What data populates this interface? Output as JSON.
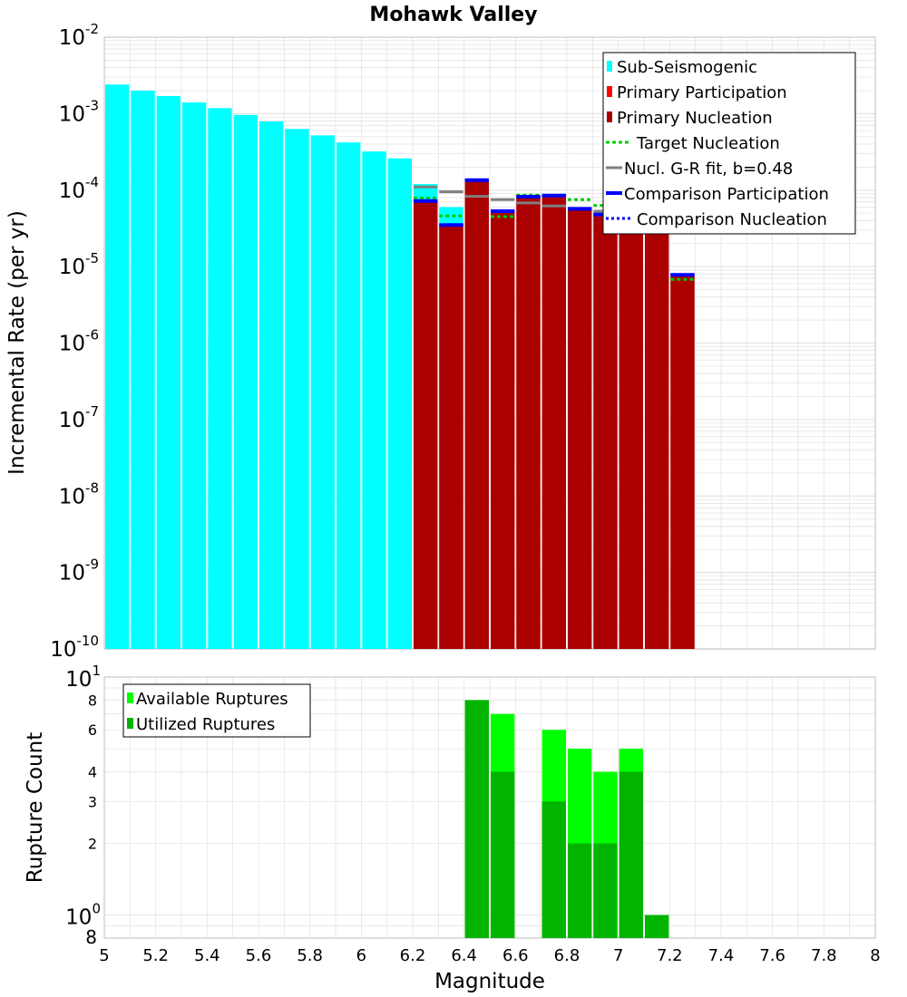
{
  "colors": {
    "sub": "#00ffff",
    "primary_participation": "#ff0000",
    "primary_nucleation": "#aa0000",
    "target": "#00cc00",
    "gr_fit": "#808080",
    "comparison": "#0000ff",
    "available": "#00ff00",
    "utilized": "#00b400",
    "grid": "#e4e4e4"
  },
  "chart_data": [
    {
      "type": "bar",
      "title": "Mohawk Valley",
      "xlabel": "Magnitude",
      "ylabel": "Incremental Rate (per yr)",
      "xlim": [
        5,
        8
      ],
      "ylim_log10": [
        -10,
        -2
      ],
      "y_tick_exponents": [
        "-10",
        "-9",
        "-8",
        "-7",
        "-6",
        "-5",
        "-4",
        "-3",
        "-2"
      ],
      "sub_seismogenic": {
        "x": [
          5.05,
          5.15,
          5.25,
          5.35,
          5.45,
          5.55,
          5.65,
          5.75,
          5.85,
          5.95,
          6.05,
          6.15,
          6.25,
          6.35
        ],
        "y": [
          0.0024,
          0.002,
          0.0017,
          0.0014,
          0.00118,
          0.00096,
          0.00079,
          0.00063,
          0.00052,
          0.00042,
          0.00032,
          0.00026,
          0.00012,
          6e-05
        ]
      },
      "primary_participation": {
        "x": [
          6.25,
          6.35,
          6.45,
          6.55,
          6.65,
          6.75,
          6.85,
          6.95,
          7.05,
          7.15,
          7.25
        ],
        "y": [
          7.2e-05,
          3.5e-05,
          0.000135,
          5e-05,
          8.2e-05,
          8.5e-05,
          5.7e-05,
          4.8e-05,
          4.8e-05,
          4.3e-05,
          7.5e-06
        ]
      },
      "primary_nucleation": {
        "x": [
          6.25,
          6.35,
          6.45,
          6.55,
          6.65,
          6.75,
          6.85,
          6.95,
          7.05,
          7.15,
          7.25
        ],
        "y": [
          7.2e-05,
          3.5e-05,
          0.000135,
          5e-05,
          8.2e-05,
          8.5e-05,
          5.7e-05,
          4.8e-05,
          4.8e-05,
          4.3e-05,
          7.5e-06
        ]
      },
      "target_nucleation": {
        "x": [
          6.25,
          6.35,
          6.45,
          6.55,
          6.65,
          6.75,
          6.85,
          6.95,
          7.05,
          7.15,
          7.25
        ],
        "y": [
          7.9e-05,
          4.6e-05,
          0.000135,
          4.5e-05,
          8.6e-05,
          8.5e-05,
          7.5e-05,
          6.3e-05,
          5.2e-05,
          4.2e-05,
          6.8e-06
        ]
      },
      "gr_fit": {
        "x": [
          6.25,
          6.35,
          6.45,
          6.55,
          6.65,
          6.75,
          6.85,
          6.95,
          7.05,
          7.15,
          7.25
        ],
        "y": [
          0.00011,
          9.5e-05,
          8.3e-05,
          7.5e-05,
          6.8e-05,
          6.2e-05,
          5.7e-05,
          5.3e-05,
          4.9e-05,
          4.6e-05,
          4.2e-05
        ]
      },
      "comparison_participation": {
        "x": [
          6.25,
          6.35,
          6.45,
          6.55,
          6.65,
          6.75,
          6.85,
          6.95,
          7.05,
          7.15,
          7.25
        ],
        "y": [
          7.2e-05,
          3.5e-05,
          0.000135,
          5.3e-05,
          8.2e-05,
          8.5e-05,
          5.7e-05,
          4.8e-05,
          4.8e-05,
          4.3e-05,
          7.8e-06
        ]
      },
      "comparison_nucleation": {
        "x": [
          6.25,
          6.35,
          6.45,
          6.55,
          6.65,
          6.75,
          6.85,
          6.95,
          7.05,
          7.15,
          7.25
        ],
        "y": [
          7.2e-05,
          3.5e-05,
          0.000135,
          5.3e-05,
          8.2e-05,
          8.5e-05,
          5.7e-05,
          4.8e-05,
          4.8e-05,
          4.3e-05,
          7.8e-06
        ]
      },
      "legend": {
        "position": "top-right",
        "entries": [
          "Sub-Seismogenic",
          "Primary Participation",
          "Primary Nucleation",
          "Target Nucleation",
          "Nucl. G-R fit, b=0.48",
          "Comparison Participation",
          "Comparison Nucleation"
        ]
      }
    },
    {
      "type": "bar",
      "xlabel": "Magnitude",
      "ylabel": "Rupture Count",
      "xlim": [
        5,
        8
      ],
      "ylim": [
        0.8,
        10
      ],
      "x_ticks": [
        "5",
        "5.2",
        "5.4",
        "5.6",
        "5.8",
        "6",
        "6.2",
        "6.4",
        "6.6",
        "6.8",
        "7",
        "7.2",
        "7.4",
        "7.6",
        "7.8",
        "8"
      ],
      "y_minor_ticks": [
        "8",
        "6",
        "4",
        "3",
        "2",
        "8"
      ],
      "y_major_ticks": [
        {
          "base": "10",
          "exp": "1"
        },
        {
          "base": "10",
          "exp": "0"
        }
      ],
      "available": {
        "x": [
          6.45,
          6.55,
          6.75,
          6.85,
          6.95,
          7.05,
          7.15
        ],
        "y": [
          8,
          7,
          6,
          5,
          4,
          5,
          1
        ]
      },
      "utilized": {
        "x": [
          6.45,
          6.55,
          6.75,
          6.85,
          6.95,
          7.05,
          7.15
        ],
        "y": [
          8,
          4,
          3,
          2,
          2,
          4,
          1
        ]
      },
      "legend": {
        "position": "top-left",
        "entries": [
          "Available Ruptures",
          "Utilized Ruptures"
        ]
      }
    }
  ]
}
